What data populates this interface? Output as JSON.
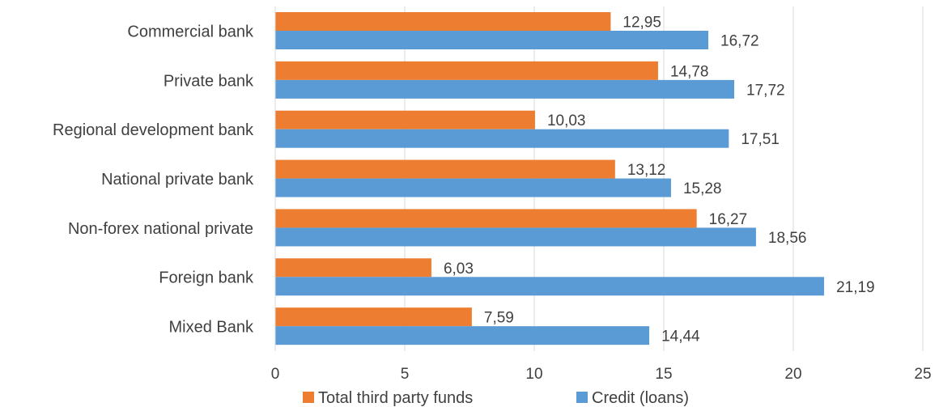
{
  "chart_data": {
    "type": "bar",
    "orientation": "horizontal",
    "title": "",
    "xlabel": "",
    "ylabel": "",
    "categories": [
      "Commercial bank",
      "Private bank",
      "Regional development bank",
      "National private bank",
      "Non-forex national private",
      "Foreign bank",
      "Mixed Bank"
    ],
    "series": [
      {
        "name": "Total third party funds",
        "color": "#ED7D31",
        "values": [
          12.95,
          14.78,
          10.03,
          13.12,
          16.27,
          6.03,
          7.59
        ],
        "labels": [
          "12,95",
          "14,78",
          "10,03",
          "13,12",
          "16,27",
          "6,03",
          "7,59"
        ]
      },
      {
        "name": "Credit (loans)",
        "color": "#5B9BD5",
        "values": [
          16.72,
          17.72,
          17.51,
          15.28,
          18.56,
          21.19,
          14.44
        ],
        "labels": [
          "16,72",
          "17,72",
          "17,51",
          "15,28",
          "18,56",
          "21,19",
          "14,44"
        ]
      }
    ],
    "xlim": [
      0,
      25
    ],
    "xticks": [
      0,
      5,
      10,
      15,
      20,
      25
    ],
    "grid": "vertical",
    "legend": "bottom-center"
  }
}
